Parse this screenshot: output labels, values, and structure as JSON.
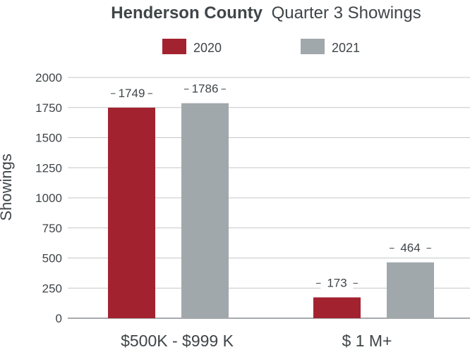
{
  "chart_data": {
    "type": "bar",
    "title_bold": "Henderson County",
    "title_rest": "Quarter 3 Showings",
    "ylabel": "Showings",
    "xlabel": "",
    "ylim": [
      0,
      2000
    ],
    "yticks": [
      0,
      250,
      500,
      750,
      1000,
      1250,
      1500,
      1750,
      2000
    ],
    "categories": [
      "$500K - $999 K",
      "$ 1 M+"
    ],
    "grid": true,
    "legend_position": "top",
    "series": [
      {
        "name": "2020",
        "color": "#a3222f",
        "values": [
          1749,
          173
        ]
      },
      {
        "name": "2021",
        "color": "#a1a8ac",
        "values": [
          1786,
          464
        ]
      }
    ]
  }
}
